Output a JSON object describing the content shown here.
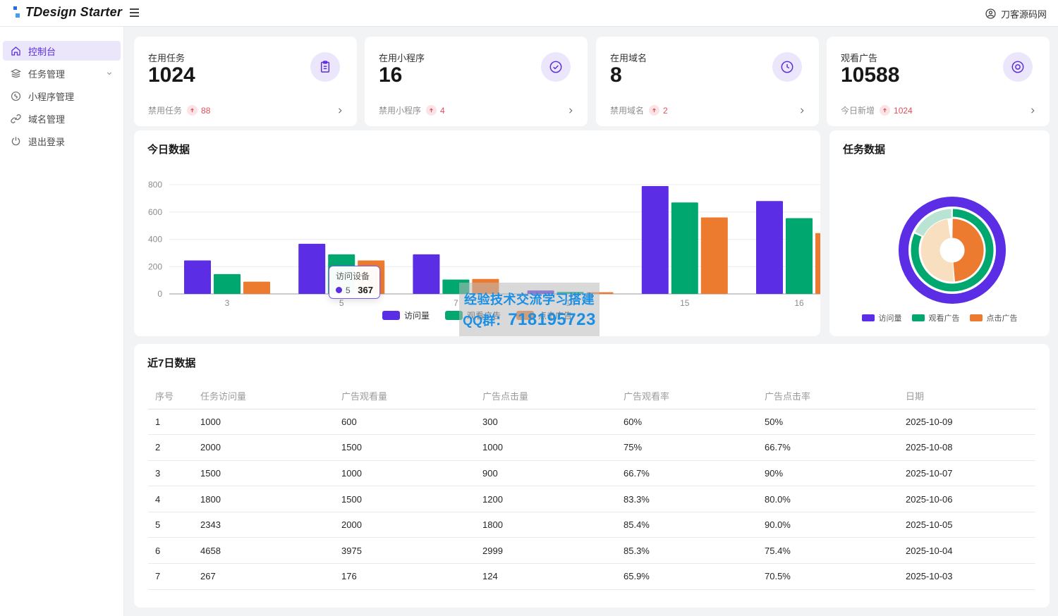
{
  "header": {
    "logo_text": "TDesign Starter",
    "user_name": "刀客源码网"
  },
  "sidebar": {
    "items": [
      {
        "label": "控制台",
        "icon": "home",
        "active": true
      },
      {
        "label": "任务管理",
        "icon": "layers",
        "has_children": true
      },
      {
        "label": "小程序管理",
        "icon": "miniprogram"
      },
      {
        "label": "域名管理",
        "icon": "link"
      },
      {
        "label": "退出登录",
        "icon": "power"
      }
    ]
  },
  "stat_cards": [
    {
      "title": "在用任务",
      "value": "1024",
      "sub_label": "禁用任务",
      "sub_value": "88",
      "icon": "clipboard-icon"
    },
    {
      "title": "在用小程序",
      "value": "16",
      "sub_label": "禁用小程序",
      "sub_value": "4",
      "icon": "check-circle-icon"
    },
    {
      "title": "在用域名",
      "value": "8",
      "sub_label": "禁用域名",
      "sub_value": "2",
      "icon": "clock-icon"
    },
    {
      "title": "观看广告",
      "value": "10588",
      "sub_label": "今日新增",
      "sub_value": "1024",
      "icon": "eye-icon"
    }
  ],
  "today_panel": {
    "title": "今日数据",
    "legend": [
      "访问量",
      "观看广告",
      "点击广告"
    ],
    "tooltip": {
      "title": "访问设备",
      "label": "5",
      "value": "367"
    }
  },
  "task_panel": {
    "title": "任务数据",
    "legend": [
      "访问量",
      "观看广告",
      "点击广告"
    ]
  },
  "watermark": {
    "line1": "经验技术交流学习搭建",
    "qq_label": "QQ群：",
    "qq_number": "718195723"
  },
  "chart_data": [
    {
      "type": "bar",
      "title": "今日数据",
      "categories": [
        "3",
        "5",
        "7",
        "14",
        "15",
        "16"
      ],
      "series": [
        {
          "name": "访问量",
          "color": "#5b2de4",
          "values": [
            245,
            367,
            290,
            25,
            790,
            680
          ]
        },
        {
          "name": "观看广告",
          "color": "#00a870",
          "values": [
            145,
            290,
            105,
            15,
            670,
            555
          ]
        },
        {
          "name": "点击广告",
          "color": "#ed7b2f",
          "values": [
            90,
            245,
            110,
            12,
            560,
            445
          ]
        }
      ],
      "ylim": [
        0,
        800
      ],
      "yticks": [
        0,
        200,
        400,
        600,
        800
      ],
      "grid": true,
      "legend_position": "bottom"
    },
    {
      "type": "donut",
      "title": "任务数据",
      "legend": [
        "访问量",
        "观看广告",
        "点击广告"
      ],
      "rings": [
        {
          "name": "访问量",
          "radius": 69,
          "width": 14,
          "segments": [
            {
              "color": "#5b2de4",
              "pct": 100
            }
          ]
        },
        {
          "name": "观看广告",
          "radius": 53,
          "width": 11,
          "segments": [
            {
              "color": "#00a870",
              "pct": 82
            },
            {
              "color": "#b9e4d3",
              "pct": 18,
              "width": 13,
              "radius": 52
            }
          ]
        },
        {
          "name": "点击广告",
          "radius": 31,
          "width": 27,
          "segments": [
            {
              "color": "#ed7b2f",
              "pct": 49
            },
            {
              "color": "#f8dfc0",
              "pct": 49
            }
          ]
        }
      ],
      "legend_position": "bottom"
    }
  ],
  "table": {
    "title": "近7日数据",
    "columns": [
      "序号",
      "任务访问量",
      "广告观看量",
      "广告点击量",
      "广告观看率",
      "广告点击率",
      "日期"
    ],
    "rows": [
      [
        "1",
        "1000",
        "600",
        "300",
        "60%",
        "50%",
        "2025-10-09"
      ],
      [
        "2",
        "2000",
        "1500",
        "1000",
        "75%",
        "66.7%",
        "2025-10-08"
      ],
      [
        "3",
        "1500",
        "1000",
        "900",
        "66.7%",
        "90%",
        "2025-10-07"
      ],
      [
        "4",
        "1800",
        "1500",
        "1200",
        "83.3%",
        "80.0%",
        "2025-10-06"
      ],
      [
        "5",
        "2343",
        "2000",
        "1800",
        "85.4%",
        "90.0%",
        "2025-10-05"
      ],
      [
        "6",
        "4658",
        "3975",
        "2999",
        "85.3%",
        "75.4%",
        "2025-10-04"
      ],
      [
        "7",
        "267",
        "176",
        "124",
        "65.9%",
        "70.5%",
        "2025-10-03"
      ]
    ]
  }
}
